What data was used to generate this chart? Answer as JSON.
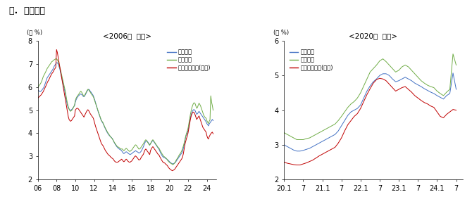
{
  "title": "다.  대출금리",
  "subtitle1": "<2006년  이후>",
  "subtitle2": "<2020년  이후>",
  "ylabel": "(연 %)",
  "legend": [
    "가계대출",
    "기업대출",
    "주택담보대출(가계)"
  ],
  "colors": [
    "#4472c4",
    "#70ad47",
    "#c00000"
  ],
  "chart1": {
    "xlim": [
      0,
      228
    ],
    "ylim": [
      2,
      8
    ],
    "yticks": [
      2,
      3,
      4,
      5,
      6,
      7,
      8
    ],
    "xtick_labels": [
      "06",
      "08",
      "10",
      "12",
      "14",
      "16",
      "18",
      "20",
      "22",
      "24"
    ],
    "xtick_positions": [
      0,
      24,
      48,
      72,
      96,
      120,
      144,
      168,
      192,
      216
    ]
  },
  "chart2": {
    "xlim": [
      0,
      56
    ],
    "ylim": [
      2,
      6
    ],
    "yticks": [
      2,
      3,
      4,
      5,
      6
    ],
    "xtick_labels": [
      "20.1",
      "7",
      "21.1",
      "7",
      "22.1",
      "7",
      "23.1",
      "7",
      "24.1",
      "7"
    ],
    "xtick_positions": [
      0,
      6,
      12,
      18,
      24,
      30,
      36,
      42,
      48,
      54
    ]
  }
}
